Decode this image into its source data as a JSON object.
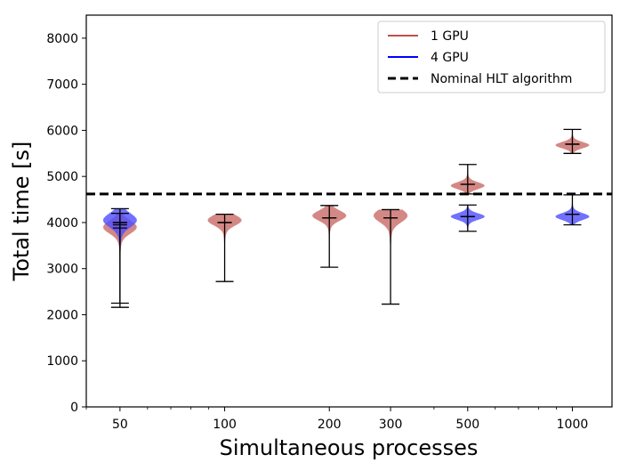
{
  "chart_data": {
    "type": "violin",
    "xlabel": "Simultaneous processes",
    "ylabel": "Total time [s]",
    "x_scale": "log",
    "xlim": [
      40,
      1300
    ],
    "ylim": [
      0,
      8500
    ],
    "y_ticks": [
      0,
      1000,
      2000,
      3000,
      4000,
      5000,
      6000,
      7000,
      8000
    ],
    "x_ticks": [
      50,
      100,
      200,
      300,
      500,
      1000
    ],
    "grid": false,
    "legend_position": "top-right",
    "reference_line": {
      "name": "Nominal HLT algorithm",
      "y": 4620,
      "style": "dashed",
      "color": "#000000"
    },
    "series": [
      {
        "name": "1 GPU",
        "color": "#c0504d",
        "fill": "#c96a66",
        "points": [
          {
            "x": 50,
            "min": 2250,
            "max": 4200,
            "mean": 3950,
            "median": 4000,
            "mode": 3900
          },
          {
            "x": 100,
            "min": 2720,
            "max": 4180,
            "mean": 4000,
            "median": 4000,
            "mode": 4050
          },
          {
            "x": 200,
            "min": 3030,
            "max": 4370,
            "mean": 4100,
            "median": 4100,
            "mode": 4150
          },
          {
            "x": 300,
            "min": 2230,
            "max": 4280,
            "mean": 4100,
            "median": 4100,
            "mode": 4150
          },
          {
            "x": 500,
            "min": 4620,
            "max": 5260,
            "mean": 4830,
            "median": 4830,
            "mode": 4800
          },
          {
            "x": 1000,
            "min": 5500,
            "max": 6020,
            "mean": 5700,
            "median": 5700,
            "mode": 5680
          }
        ]
      },
      {
        "name": "4 GPU",
        "color": "#0000ff",
        "fill": "#4d4dff",
        "points": [
          {
            "x": 50,
            "min": 2160,
            "max": 4300,
            "mean": 3880,
            "median": 4000,
            "mode": 4050
          },
          {
            "x": 500,
            "min": 3810,
            "max": 4380,
            "mean": 4130,
            "median": 4130,
            "mode": 4130
          },
          {
            "x": 1000,
            "min": 3950,
            "max": 4600,
            "mean": 4180,
            "median": 4180,
            "mode": 4130
          }
        ]
      }
    ]
  }
}
